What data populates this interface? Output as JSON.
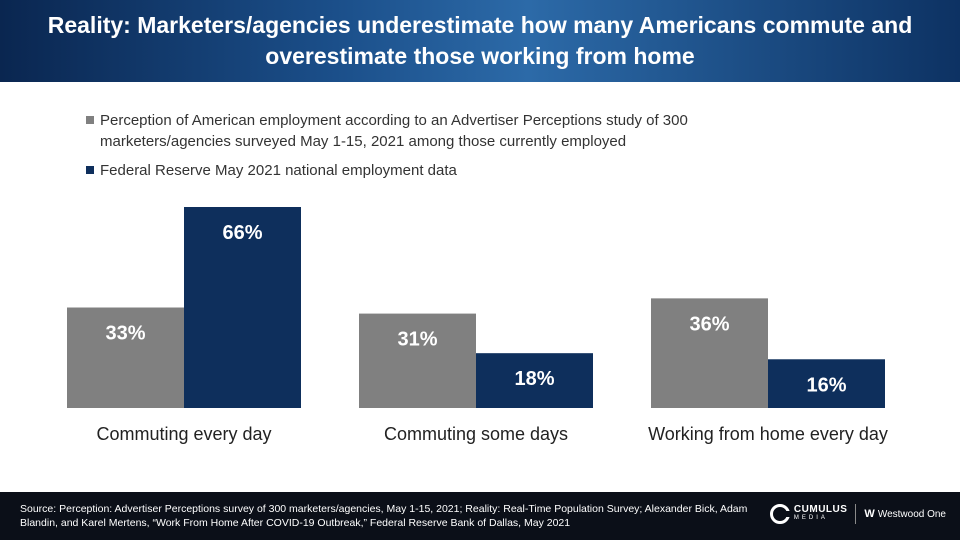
{
  "header": {
    "title": "Reality: Marketers/agencies underestimate how many Americans commute and overestimate those working from home"
  },
  "chart_data": {
    "type": "bar",
    "categories": [
      "Commuting every day",
      "Commuting some days",
      "Working from home every day"
    ],
    "series": [
      {
        "name": "Perception of American employment according to an Advertiser Perceptions study of 300 marketers/agencies surveyed May 1-15, 2021 among those currently employed",
        "values": [
          33,
          31,
          36
        ],
        "labels": [
          "33%",
          "31%",
          "36%"
        ],
        "color": "#808080"
      },
      {
        "name": "Federal Reserve May 2021 national employment data",
        "values": [
          66,
          18,
          16
        ],
        "labels": [
          "66%",
          "18%",
          "16%"
        ],
        "color": "#0e2f5c"
      }
    ],
    "ylim": [
      0,
      66
    ],
    "legend_position": "top-left"
  },
  "footer": {
    "source": "Source: Perception: Advertiser Perceptions survey of 300 marketers/agencies, May 1-15, 2021; Reality: Real-Time Population Survey; Alexander Bick, Adam Blandin, and Karel Mertens, “Work From Home After COVID-19 Outbreak,” Federal Reserve Bank of Dallas, May 2021",
    "logo_cumulus": "CUMULUS",
    "logo_cumulus_sub": "MEDIA",
    "logo_westwood": "Westwood One",
    "logo_westwood_mark": "W"
  }
}
